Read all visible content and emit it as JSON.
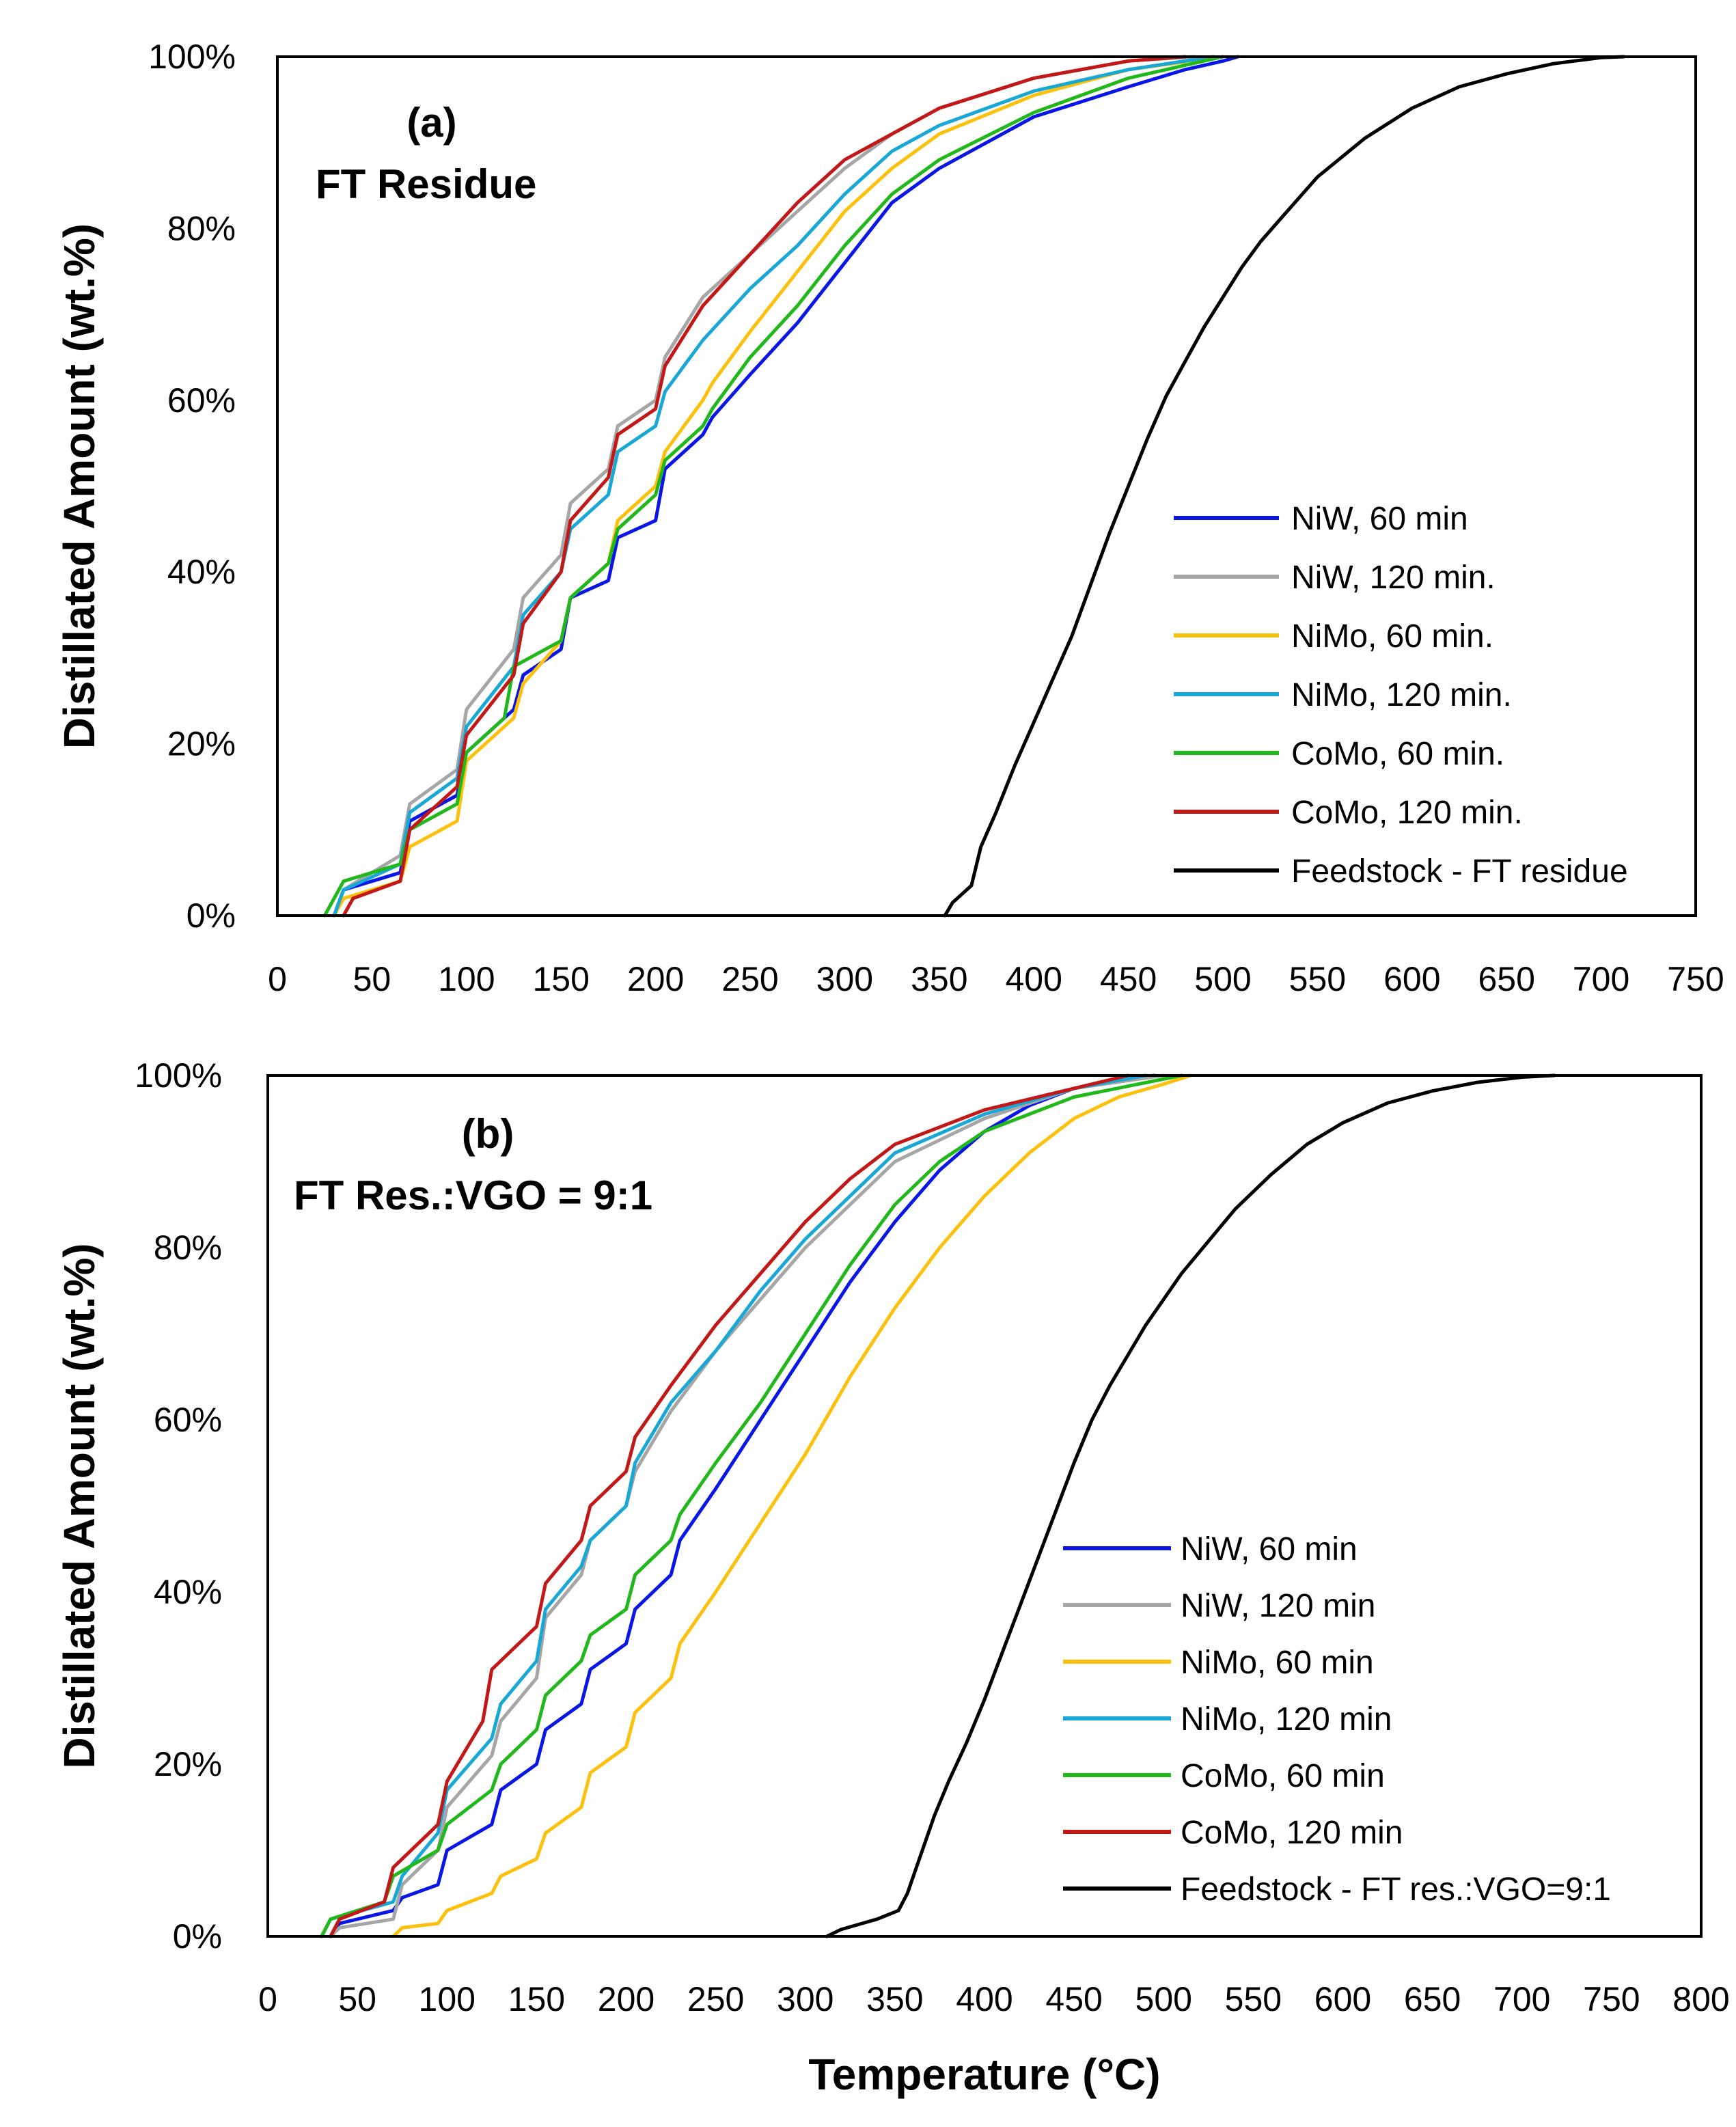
{
  "chart_data": [
    {
      "type": "line",
      "panel_label": "(a)",
      "subtitle": "FT Residue",
      "xlabel": "",
      "ylabel": "Distillated Amount (wt.%)",
      "xlim": [
        0,
        750
      ],
      "ylim": [
        0,
        100
      ],
      "xticks": [
        0,
        50,
        100,
        150,
        200,
        250,
        300,
        350,
        400,
        450,
        500,
        550,
        600,
        650,
        700,
        750
      ],
      "yticks": [
        0,
        20,
        40,
        60,
        80,
        100
      ],
      "legend_position": "bottom-right",
      "series": [
        {
          "name": "NiW, 60 min",
          "color": "#0a16e6",
          "x": [
            30,
            35,
            65,
            70,
            95,
            100,
            125,
            130,
            150,
            155,
            175,
            180,
            200,
            205,
            225,
            230,
            250,
            275,
            300,
            325,
            350,
            400,
            450,
            480,
            500,
            508
          ],
          "y": [
            0,
            3,
            5,
            11,
            14,
            19,
            24,
            28,
            31,
            37,
            39,
            44,
            46,
            52,
            56,
            58,
            63,
            69,
            76,
            83,
            87,
            93,
            96.5,
            98.5,
            99.5,
            100
          ]
        },
        {
          "name": "NiW, 120 min.",
          "color": "#a6a6a6",
          "x": [
            30,
            35,
            65,
            70,
            95,
            100,
            125,
            130,
            150,
            155,
            175,
            180,
            200,
            205,
            225,
            250,
            275,
            300,
            325,
            350,
            400,
            450,
            485
          ],
          "y": [
            0,
            3,
            7,
            13,
            17,
            24,
            31,
            37,
            42,
            48,
            52,
            57,
            60,
            65,
            72,
            77,
            82,
            87,
            91,
            94,
            97.5,
            99.5,
            100
          ]
        },
        {
          "name": "NiMo, 60 min.",
          "color": "#fcc10d",
          "x": [
            30,
            35,
            65,
            70,
            95,
            100,
            125,
            130,
            150,
            155,
            175,
            180,
            200,
            205,
            225,
            230,
            250,
            275,
            300,
            325,
            350,
            400,
            450,
            500
          ],
          "y": [
            0,
            2,
            4,
            8,
            11,
            18,
            23,
            27,
            32,
            37,
            41,
            46,
            50,
            54,
            60,
            62,
            68,
            75,
            82,
            87,
            91,
            95.5,
            98.5,
            100
          ]
        },
        {
          "name": "NiMo, 120 min.",
          "color": "#19a8d6",
          "x": [
            30,
            35,
            65,
            70,
            95,
            100,
            125,
            130,
            150,
            155,
            175,
            180,
            200,
            205,
            225,
            250,
            275,
            300,
            325,
            350,
            400,
            450,
            495
          ],
          "y": [
            0,
            3,
            6,
            12,
            16,
            22,
            29,
            35,
            40,
            45,
            49,
            54,
            57,
            61,
            67,
            73,
            78,
            84,
            89,
            92,
            96,
            98.5,
            100
          ]
        },
        {
          "name": "CoMo, 60 min.",
          "color": "#20b81a",
          "x": [
            25,
            35,
            65,
            70,
            95,
            100,
            120,
            125,
            150,
            155,
            175,
            180,
            200,
            205,
            225,
            230,
            250,
            275,
            300,
            325,
            350,
            400,
            450,
            500
          ],
          "y": [
            0,
            4,
            6,
            10,
            13,
            19,
            23,
            29,
            32,
            37,
            41,
            45,
            49,
            53,
            57,
            59,
            65,
            71,
            78,
            84,
            88,
            93.5,
            97.5,
            100
          ]
        },
        {
          "name": "CoMo, 120 min.",
          "color": "#c21818",
          "x": [
            35,
            40,
            65,
            70,
            95,
            100,
            125,
            130,
            150,
            155,
            175,
            180,
            200,
            205,
            225,
            250,
            275,
            300,
            325,
            350,
            400,
            450,
            480
          ],
          "y": [
            0,
            2,
            4,
            10,
            15,
            21,
            28,
            34,
            40,
            46,
            51,
            56,
            59,
            64,
            71,
            77,
            83,
            88,
            91,
            94,
            97.5,
            99.5,
            100
          ]
        },
        {
          "name": "Feedstock - FT residue",
          "color": "#000000",
          "x": [
            353,
            357,
            367,
            372,
            380,
            390,
            400,
            410,
            420,
            430,
            440,
            450,
            460,
            470,
            480,
            490,
            500,
            510,
            520,
            530,
            540,
            550,
            575,
            600,
            625,
            650,
            675,
            700,
            712
          ],
          "y": [
            0,
            1.5,
            3.5,
            8,
            12,
            17.5,
            22.5,
            27.5,
            32.5,
            38.5,
            44.5,
            50,
            55.5,
            60.5,
            64.5,
            68.5,
            72,
            75.5,
            78.5,
            81,
            83.5,
            86,
            90.5,
            94,
            96.5,
            98,
            99.2,
            99.9,
            100
          ]
        }
      ]
    },
    {
      "type": "line",
      "panel_label": "(b)",
      "subtitle": "FT Res.:VGO = 9:1",
      "xlabel": "Temperature (°C)",
      "ylabel": "Distillated Amount  (wt.%)",
      "xlim": [
        0,
        800
      ],
      "ylim": [
        0,
        100
      ],
      "xticks": [
        0,
        50,
        100,
        150,
        200,
        250,
        300,
        350,
        400,
        450,
        500,
        550,
        600,
        650,
        700,
        750,
        800
      ],
      "yticks": [
        0,
        20,
        40,
        60,
        80,
        100
      ],
      "legend_position": "bottom-right",
      "series": [
        {
          "name": "NiW, 60 min",
          "color": "#0a16e6",
          "x": [
            35,
            40,
            70,
            75,
            95,
            100,
            125,
            130,
            150,
            155,
            175,
            180,
            200,
            205,
            225,
            230,
            250,
            275,
            300,
            325,
            350,
            375,
            400,
            425,
            450,
            475,
            495
          ],
          "y": [
            0,
            1.5,
            3,
            4.5,
            6,
            10,
            13,
            17,
            20,
            24,
            27,
            31,
            34,
            38,
            42,
            46,
            52,
            60,
            68,
            76,
            83,
            89,
            93.5,
            96.5,
            98.5,
            99.5,
            100
          ]
        },
        {
          "name": "NiW, 120 min",
          "color": "#a6a6a6",
          "x": [
            35,
            40,
            70,
            75,
            95,
            100,
            125,
            130,
            150,
            155,
            175,
            180,
            200,
            205,
            225,
            250,
            275,
            300,
            325,
            350,
            400,
            450,
            500
          ],
          "y": [
            0,
            1,
            2,
            6,
            10,
            15,
            21,
            25,
            30,
            37,
            42,
            46,
            50,
            54,
            61,
            68,
            74,
            80,
            85,
            90,
            95,
            98.5,
            100
          ]
        },
        {
          "name": "NiMo, 60 min",
          "color": "#fcc10d",
          "x": [
            70,
            75,
            95,
            100,
            125,
            130,
            150,
            155,
            175,
            180,
            200,
            205,
            225,
            230,
            250,
            275,
            300,
            325,
            350,
            375,
            400,
            425,
            450,
            475,
            500,
            515
          ],
          "y": [
            0,
            1,
            1.5,
            3,
            5,
            7,
            9,
            12,
            15,
            19,
            22,
            26,
            30,
            34,
            40,
            48,
            56,
            65,
            73,
            80,
            86,
            91,
            95,
            97.5,
            99,
            100
          ]
        },
        {
          "name": "NiMo, 120 min",
          "color": "#19a8d6",
          "x": [
            30,
            35,
            70,
            75,
            95,
            100,
            125,
            130,
            150,
            155,
            175,
            180,
            200,
            205,
            225,
            250,
            275,
            300,
            325,
            350,
            400,
            450,
            490
          ],
          "y": [
            0,
            2,
            4,
            7,
            12,
            17,
            23,
            27,
            32,
            38,
            43,
            46,
            50,
            55,
            62,
            68,
            75,
            81,
            86,
            91,
            95.5,
            98.5,
            100
          ]
        },
        {
          "name": "CoMo, 60 min",
          "color": "#20b81a",
          "x": [
            30,
            35,
            65,
            70,
            95,
            100,
            125,
            130,
            150,
            155,
            175,
            180,
            200,
            205,
            225,
            230,
            250,
            275,
            300,
            325,
            350,
            375,
            400,
            450,
            510
          ],
          "y": [
            0,
            2,
            4,
            7,
            10,
            13,
            17,
            20,
            24,
            28,
            32,
            35,
            38,
            42,
            46,
            49,
            55,
            62,
            70,
            78,
            85,
            90,
            93.5,
            97.5,
            100
          ]
        },
        {
          "name": "CoMo, 120 min",
          "color": "#c21818",
          "x": [
            35,
            40,
            65,
            70,
            95,
            100,
            120,
            125,
            150,
            155,
            175,
            180,
            200,
            205,
            225,
            250,
            275,
            300,
            325,
            350,
            400,
            450,
            480
          ],
          "y": [
            0,
            2,
            4,
            8,
            13,
            18,
            25,
            31,
            36,
            41,
            46,
            50,
            54,
            58,
            64,
            71,
            77,
            83,
            88,
            92,
            96,
            98.5,
            100
          ]
        },
        {
          "name": "Feedstock - FT res.:VGO=9:1",
          "color": "#000000",
          "x": [
            312,
            320,
            340,
            352,
            357,
            362,
            372,
            380,
            390,
            400,
            410,
            420,
            430,
            440,
            450,
            460,
            470,
            480,
            490,
            500,
            510,
            520,
            530,
            540,
            560,
            580,
            600,
            625,
            650,
            675,
            700,
            718
          ],
          "y": [
            0,
            0.8,
            2,
            3,
            5,
            8,
            14,
            18,
            22.5,
            27.5,
            33,
            38.5,
            44,
            49.5,
            55,
            60,
            64,
            67.5,
            71,
            74,
            77,
            79.5,
            82,
            84.5,
            88.5,
            92,
            94.5,
            96.8,
            98.2,
            99.2,
            99.8,
            100
          ]
        }
      ]
    }
  ]
}
